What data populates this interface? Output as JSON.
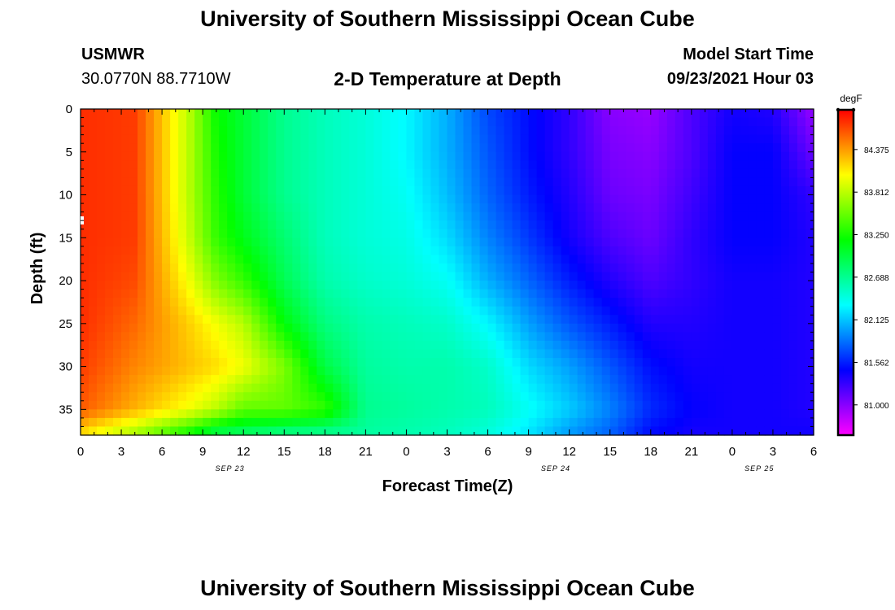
{
  "header": {
    "title": "University of Southern Mississippi Ocean Cube",
    "station": "USMWR",
    "coords": "30.0770N  88.7710W",
    "plot_title": "2-D Temperature at Depth",
    "start_label": "Model Start Time",
    "start_value": "09/23/2021 Hour 03"
  },
  "footer": {
    "title": "University of Southern Mississippi Ocean Cube"
  },
  "chart_data": {
    "type": "heatmap",
    "title": "2-D Temperature at Depth",
    "xlabel": "Forecast Time(Z)",
    "ylabel": "Depth (ft)",
    "xlim": [
      0,
      54
    ],
    "ylim": [
      38,
      0
    ],
    "x_tick_labels": [
      "0",
      "3",
      "6",
      "9",
      "12",
      "15",
      "18",
      "21",
      "0",
      "3",
      "6",
      "9",
      "12",
      "15",
      "18",
      "21",
      "0",
      "3",
      "6"
    ],
    "date_labels": [
      {
        "label": "SEP 23",
        "hour": 11
      },
      {
        "label": "SEP 24",
        "hour": 35
      },
      {
        "label": "SEP 25",
        "hour": 50
      }
    ],
    "y_ticks": [
      0,
      5,
      10,
      15,
      20,
      25,
      30,
      35
    ],
    "colorbar": {
      "unit": "degF",
      "ticks": [
        "84.375",
        "83.812",
        "83.250",
        "82.688",
        "82.125",
        "81.562",
        "81.000"
      ],
      "tick_values": [
        84.375,
        83.812,
        83.25,
        82.688,
        82.125,
        81.562,
        81.0
      ],
      "range": [
        80.6,
        84.9
      ],
      "colors": [
        "#ff00ff",
        "#0000ff",
        "#00ffff",
        "#00ff00",
        "#ffff00",
        "#ff0000"
      ]
    },
    "depths": [
      0,
      5,
      10,
      15,
      20,
      25,
      30,
      35,
      37.5
    ],
    "profiles": [
      {
        "hour": 0,
        "temps": [
          84.75,
          84.75,
          84.75,
          84.75,
          84.75,
          84.75,
          84.7,
          84.6,
          84.2
        ]
      },
      {
        "hour": 4,
        "temps": [
          84.7,
          84.7,
          84.7,
          84.7,
          84.65,
          84.55,
          84.45,
          84.3,
          83.8
        ]
      },
      {
        "hour": 8,
        "temps": [
          83.8,
          83.8,
          83.8,
          83.85,
          84.0,
          84.2,
          84.25,
          84.0,
          83.3
        ]
      },
      {
        "hour": 10,
        "temps": [
          83.2,
          83.25,
          83.3,
          83.35,
          83.6,
          84.0,
          84.15,
          83.8,
          83.0
        ]
      },
      {
        "hour": 12,
        "temps": [
          83.0,
          83.0,
          83.0,
          83.1,
          83.35,
          83.8,
          84.0,
          83.5,
          82.9
        ]
      },
      {
        "hour": 15,
        "temps": [
          82.7,
          82.7,
          82.7,
          82.8,
          82.9,
          83.15,
          83.6,
          83.5,
          82.8
        ]
      },
      {
        "hour": 18,
        "temps": [
          82.55,
          82.55,
          82.55,
          82.55,
          82.6,
          82.75,
          82.95,
          83.35,
          82.75
        ]
      },
      {
        "hour": 21,
        "temps": [
          82.45,
          82.45,
          82.45,
          82.45,
          82.5,
          82.6,
          82.65,
          82.7,
          82.65
        ]
      },
      {
        "hour": 24,
        "temps": [
          82.3,
          82.3,
          82.35,
          82.4,
          82.45,
          82.55,
          82.6,
          82.65,
          82.6
        ]
      },
      {
        "hour": 27,
        "temps": [
          82.05,
          82.05,
          82.1,
          82.2,
          82.35,
          82.5,
          82.6,
          82.6,
          82.55
        ]
      },
      {
        "hour": 30,
        "temps": [
          81.7,
          81.75,
          81.8,
          81.9,
          82.05,
          82.3,
          82.5,
          82.55,
          82.45
        ]
      },
      {
        "hour": 33,
        "temps": [
          81.5,
          81.5,
          81.55,
          81.65,
          81.8,
          82.0,
          82.2,
          82.35,
          82.25
        ]
      },
      {
        "hour": 36,
        "temps": [
          81.3,
          81.3,
          81.35,
          81.4,
          81.55,
          81.75,
          82.0,
          82.15,
          82.0
        ]
      },
      {
        "hour": 39,
        "temps": [
          81.0,
          81.05,
          81.1,
          81.2,
          81.35,
          81.55,
          81.75,
          81.9,
          81.8
        ]
      },
      {
        "hour": 42,
        "temps": [
          80.95,
          81.0,
          81.05,
          81.1,
          81.2,
          81.35,
          81.5,
          81.6,
          81.5
        ]
      },
      {
        "hour": 45,
        "temps": [
          81.2,
          81.2,
          81.25,
          81.3,
          81.3,
          81.35,
          81.4,
          81.45,
          81.4
        ]
      },
      {
        "hour": 48,
        "temps": [
          81.4,
          81.45,
          81.45,
          81.45,
          81.4,
          81.4,
          81.4,
          81.4,
          81.4
        ]
      },
      {
        "hour": 51,
        "temps": [
          81.35,
          81.45,
          81.45,
          81.45,
          81.4,
          81.4,
          81.4,
          81.4,
          81.4
        ]
      },
      {
        "hour": 54,
        "temps": [
          80.95,
          81.1,
          81.3,
          81.35,
          81.35,
          81.35,
          81.35,
          81.35,
          81.4
        ]
      }
    ]
  }
}
